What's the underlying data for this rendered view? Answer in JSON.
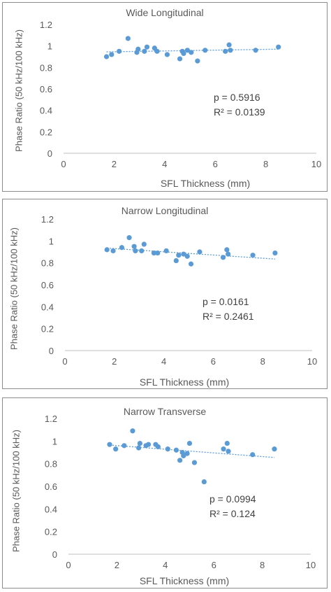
{
  "chart_data": [
    {
      "type": "scatter",
      "title": "Wide Longitudinal",
      "xlabel": "SFL Thickness (mm)",
      "ylabel": "Phase Ratio (50 kHz/100 kHz)",
      "xlim": [
        0,
        10
      ],
      "ylim": [
        0,
        1.2
      ],
      "xticks": [
        "0",
        "2",
        "4",
        "6",
        "8",
        "10"
      ],
      "yticks": [
        "0",
        "0.2",
        "0.4",
        "0.6",
        "0.8",
        "1",
        "1.2"
      ],
      "grid": false,
      "p_text": "p = 0.5916",
      "r2_text": "R² = 0.0139",
      "trendline": {
        "x": [
          1.7,
          8.5
        ],
        "y": [
          0.945,
          0.97
        ]
      },
      "points": [
        {
          "x": 1.7,
          "y": 0.9
        },
        {
          "x": 1.9,
          "y": 0.92
        },
        {
          "x": 2.2,
          "y": 0.95
        },
        {
          "x": 2.55,
          "y": 1.07
        },
        {
          "x": 2.9,
          "y": 0.94
        },
        {
          "x": 2.95,
          "y": 0.97
        },
        {
          "x": 3.2,
          "y": 0.95
        },
        {
          "x": 3.3,
          "y": 0.99
        },
        {
          "x": 3.6,
          "y": 0.98
        },
        {
          "x": 3.7,
          "y": 0.95
        },
        {
          "x": 4.1,
          "y": 0.92
        },
        {
          "x": 4.6,
          "y": 0.88
        },
        {
          "x": 4.7,
          "y": 0.95
        },
        {
          "x": 4.75,
          "y": 0.93
        },
        {
          "x": 4.9,
          "y": 0.96
        },
        {
          "x": 5.05,
          "y": 0.94
        },
        {
          "x": 5.3,
          "y": 0.86
        },
        {
          "x": 5.6,
          "y": 0.96
        },
        {
          "x": 6.4,
          "y": 0.95
        },
        {
          "x": 6.55,
          "y": 1.01
        },
        {
          "x": 6.6,
          "y": 0.96
        },
        {
          "x": 7.6,
          "y": 0.96
        },
        {
          "x": 8.5,
          "y": 0.99
        }
      ]
    },
    {
      "type": "scatter",
      "title": "Narrow Longitudinal",
      "xlabel": "SFL Thickness (mm)",
      "ylabel": "Phase Ratio (50 kHz/100 kHz)",
      "xlim": [
        0,
        10
      ],
      "ylim": [
        0,
        1.2
      ],
      "xticks": [
        "0",
        "2",
        "4",
        "6",
        "8",
        "10"
      ],
      "yticks": [
        "0",
        "0.2",
        "0.4",
        "0.6",
        "0.8",
        "1",
        "1.2"
      ],
      "grid": false,
      "p_text": "p = 0.0161",
      "r2_text": "R² = 0.2461",
      "trendline": {
        "x": [
          1.7,
          8.5
        ],
        "y": [
          0.935,
          0.835
        ]
      },
      "points": [
        {
          "x": 1.7,
          "y": 0.92
        },
        {
          "x": 1.95,
          "y": 0.91
        },
        {
          "x": 2.3,
          "y": 0.94
        },
        {
          "x": 2.6,
          "y": 1.03
        },
        {
          "x": 2.8,
          "y": 0.95
        },
        {
          "x": 2.85,
          "y": 0.91
        },
        {
          "x": 3.1,
          "y": 0.91
        },
        {
          "x": 3.2,
          "y": 0.97
        },
        {
          "x": 3.6,
          "y": 0.89
        },
        {
          "x": 3.75,
          "y": 0.89
        },
        {
          "x": 4.1,
          "y": 0.91
        },
        {
          "x": 4.5,
          "y": 0.82
        },
        {
          "x": 4.6,
          "y": 0.87
        },
        {
          "x": 4.8,
          "y": 0.88
        },
        {
          "x": 4.95,
          "y": 0.86
        },
        {
          "x": 5.1,
          "y": 0.79
        },
        {
          "x": 5.45,
          "y": 0.9
        },
        {
          "x": 6.4,
          "y": 0.85
        },
        {
          "x": 6.55,
          "y": 0.92
        },
        {
          "x": 6.6,
          "y": 0.88
        },
        {
          "x": 7.6,
          "y": 0.87
        },
        {
          "x": 8.5,
          "y": 0.89
        }
      ]
    },
    {
      "type": "scatter",
      "title": "Narrow Transverse",
      "xlabel": "SFL Thickness (mm)",
      "ylabel": "Phase Ratio (50 kHz/100 kHz)",
      "xlim": [
        0,
        10
      ],
      "ylim": [
        0,
        1.2
      ],
      "xticks": [
        "0",
        "2",
        "4",
        "6",
        "8",
        "10"
      ],
      "yticks": [
        "0",
        "0.2",
        "0.4",
        "0.6",
        "0.8",
        "1",
        "1.2"
      ],
      "grid": false,
      "p_text": "p = 0.0994",
      "r2_text": "R² = 0.124",
      "trendline": {
        "x": [
          1.7,
          8.5
        ],
        "y": [
          0.965,
          0.855
        ]
      },
      "points": [
        {
          "x": 1.7,
          "y": 0.97
        },
        {
          "x": 1.95,
          "y": 0.93
        },
        {
          "x": 2.3,
          "y": 0.96
        },
        {
          "x": 2.65,
          "y": 1.09
        },
        {
          "x": 2.9,
          "y": 0.94
        },
        {
          "x": 2.95,
          "y": 0.98
        },
        {
          "x": 3.2,
          "y": 0.96
        },
        {
          "x": 3.3,
          "y": 0.97
        },
        {
          "x": 3.6,
          "y": 0.97
        },
        {
          "x": 3.7,
          "y": 0.95
        },
        {
          "x": 4.1,
          "y": 0.93
        },
        {
          "x": 4.45,
          "y": 0.92
        },
        {
          "x": 4.6,
          "y": 0.83
        },
        {
          "x": 4.7,
          "y": 0.9
        },
        {
          "x": 4.75,
          "y": 0.87
        },
        {
          "x": 4.9,
          "y": 0.89
        },
        {
          "x": 5.0,
          "y": 0.98
        },
        {
          "x": 5.2,
          "y": 0.81
        },
        {
          "x": 5.6,
          "y": 0.64
        },
        {
          "x": 6.4,
          "y": 0.93
        },
        {
          "x": 6.55,
          "y": 0.98
        },
        {
          "x": 6.6,
          "y": 0.91
        },
        {
          "x": 7.6,
          "y": 0.88
        },
        {
          "x": 8.5,
          "y": 0.93
        }
      ]
    }
  ],
  "style": {
    "marker_color": "#5b9bd5",
    "trend_color": "#5b9bd5",
    "axis_color": "#bfbfbf"
  }
}
